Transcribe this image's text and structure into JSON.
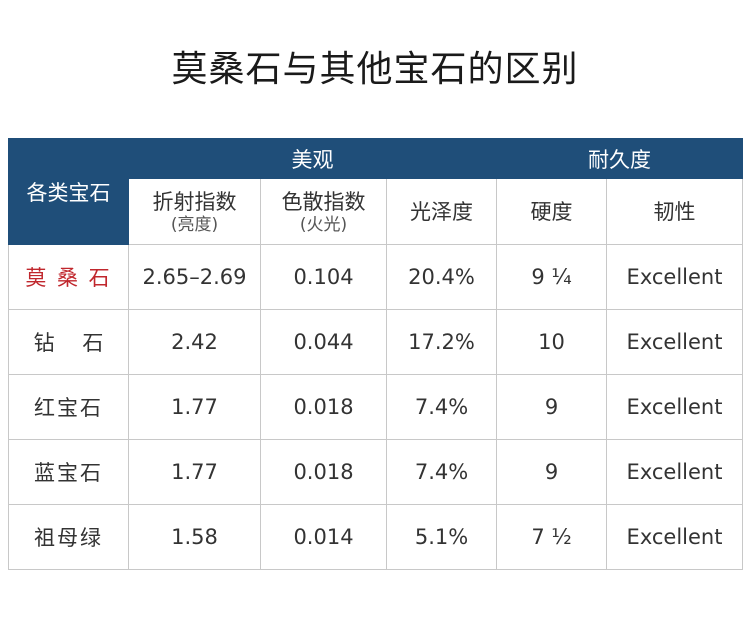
{
  "title": "莫桑石与其他宝石的区别",
  "colors": {
    "header_bg": "#1f4e79",
    "highlight_text": "#c0272d",
    "border": "#c8c8c8"
  },
  "header": {
    "corner": "各类宝石",
    "group_beauty": "美观",
    "group_durability": "耐久度",
    "columns": {
      "refraction": "折射指数",
      "refraction_note": "(亮度)",
      "dispersion": "色散指数",
      "dispersion_note": "(火光)",
      "luster": "光泽度",
      "hardness": "硬度",
      "toughness": "韧性"
    }
  },
  "rows": [
    {
      "stone": "莫 桑 石",
      "refraction": "2.65–2.69",
      "dispersion": "0.104",
      "luster": "20.4%",
      "hardness": "9 ¼",
      "toughness": "Excellent",
      "highlight": true
    },
    {
      "stone": "钻　 石",
      "refraction": "2.42",
      "dispersion": "0.044",
      "luster": "17.2%",
      "hardness": "10",
      "toughness": "Excellent",
      "highlight": false
    },
    {
      "stone": "红宝石",
      "refraction": "1.77",
      "dispersion": "0.018",
      "luster": "7.4%",
      "hardness": "9",
      "toughness": "Excellent",
      "highlight": false
    },
    {
      "stone": "蓝宝石",
      "refraction": "1.77",
      "dispersion": "0.018",
      "luster": "7.4%",
      "hardness": "9",
      "toughness": "Excellent",
      "highlight": false
    },
    {
      "stone": "祖母绿",
      "refraction": "1.58",
      "dispersion": "0.014",
      "luster": "5.1%",
      "hardness": "7 ½",
      "toughness": "Excellent",
      "highlight": false
    }
  ]
}
